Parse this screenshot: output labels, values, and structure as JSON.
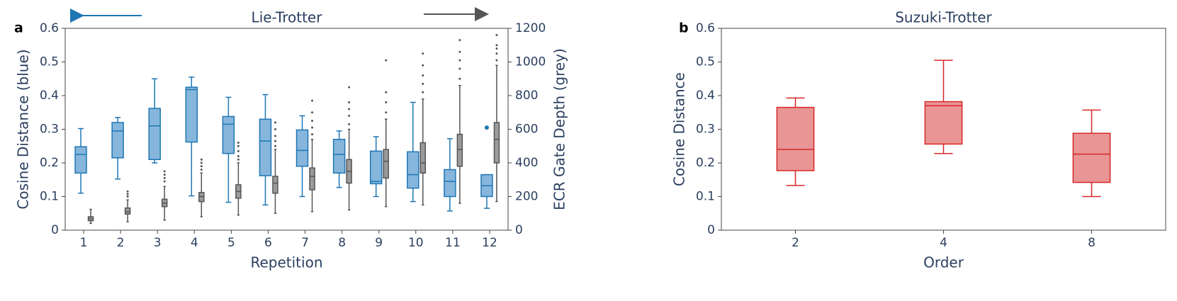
{
  "chart_data": [
    {
      "type": "box",
      "panel_label": "a",
      "title": "Lie-Trotter",
      "x_label": "Repetition",
      "y_label": "Cosine Distance (blue)",
      "y2_label": "ECR Gate Depth (grey)",
      "categories": [
        "1",
        "2",
        "3",
        "4",
        "5",
        "6",
        "7",
        "8",
        "9",
        "10",
        "11",
        "12"
      ],
      "ylim": [
        0,
        0.6
      ],
      "yticks": [
        0,
        0.1,
        0.2,
        0.3,
        0.4,
        0.5,
        0.6
      ],
      "y2lim": [
        0,
        1200
      ],
      "y2ticks": [
        0,
        200,
        400,
        600,
        800,
        1000,
        1200
      ],
      "series": [
        {
          "color": "#1f77b4",
          "fill": "#86b6dc",
          "axis": "y",
          "boxes": [
            {
              "whislo": 0.11,
              "q1": 0.17,
              "med": 0.225,
              "q3": 0.248,
              "whishi": 0.302,
              "fliers": []
            },
            {
              "whislo": 0.152,
              "q1": 0.215,
              "med": 0.295,
              "q3": 0.32,
              "whishi": 0.335,
              "fliers": []
            },
            {
              "whislo": 0.2,
              "q1": 0.21,
              "med": 0.31,
              "q3": 0.362,
              "whishi": 0.45,
              "fliers": []
            },
            {
              "whislo": 0.102,
              "q1": 0.262,
              "med": 0.418,
              "q3": 0.425,
              "whishi": 0.455,
              "fliers": []
            },
            {
              "whislo": 0.083,
              "q1": 0.228,
              "med": 0.315,
              "q3": 0.338,
              "whishi": 0.395,
              "fliers": []
            },
            {
              "whislo": 0.075,
              "q1": 0.162,
              "med": 0.265,
              "q3": 0.33,
              "whishi": 0.403,
              "fliers": []
            },
            {
              "whislo": 0.1,
              "q1": 0.19,
              "med": 0.237,
              "q3": 0.298,
              "whishi": 0.34,
              "fliers": []
            },
            {
              "whislo": 0.127,
              "q1": 0.17,
              "med": 0.225,
              "q3": 0.27,
              "whishi": 0.295,
              "fliers": []
            },
            {
              "whislo": 0.1,
              "q1": 0.138,
              "med": 0.145,
              "q3": 0.235,
              "whishi": 0.278,
              "fliers": []
            },
            {
              "whislo": 0.085,
              "q1": 0.125,
              "med": 0.165,
              "q3": 0.233,
              "whishi": 0.38,
              "fliers": []
            },
            {
              "whislo": 0.057,
              "q1": 0.1,
              "med": 0.145,
              "q3": 0.18,
              "whishi": 0.272,
              "fliers": []
            },
            {
              "whislo": 0.065,
              "q1": 0.1,
              "med": 0.132,
              "q3": 0.165,
              "whishi": 0.165,
              "fliers": [
                0.305
              ]
            }
          ]
        },
        {
          "color": "#555555",
          "fill": "#9a9a9a",
          "axis": "y2",
          "boxes": [
            {
              "whislo": 40,
              "q1": 56,
              "med": 68,
              "q3": 80,
              "whishi": 124,
              "fliers": []
            },
            {
              "whislo": 50,
              "q1": 96,
              "med": 110,
              "q3": 132,
              "whishi": 180,
              "fliers": [
                200,
                215,
                230
              ]
            },
            {
              "whislo": 60,
              "q1": 140,
              "med": 160,
              "q3": 184,
              "whishi": 260,
              "fliers": [
                290,
                310,
                330,
                350
              ]
            },
            {
              "whislo": 80,
              "q1": 170,
              "med": 200,
              "q3": 224,
              "whishi": 340,
              "fliers": [
                360,
                380,
                400,
                420
              ]
            },
            {
              "whislo": 90,
              "q1": 190,
              "med": 230,
              "q3": 270,
              "whishi": 400,
              "fliers": [
                420,
                440,
                470,
                500,
                520
              ]
            },
            {
              "whislo": 100,
              "q1": 220,
              "med": 280,
              "q3": 320,
              "whishi": 480,
              "fliers": [
                500,
                530,
                560,
                600,
                640
              ]
            },
            {
              "whislo": 110,
              "q1": 240,
              "med": 320,
              "q3": 370,
              "whishi": 540,
              "fliers": [
                570,
                610,
                650,
                700,
                770
              ]
            },
            {
              "whislo": 120,
              "q1": 280,
              "med": 350,
              "q3": 420,
              "whishi": 600,
              "fliers": [
                630,
                680,
                720,
                760,
                850
              ]
            },
            {
              "whislo": 140,
              "q1": 310,
              "med": 410,
              "q3": 480,
              "whishi": 660,
              "fliers": [
                700,
                760,
                820,
                1010
              ]
            },
            {
              "whislo": 150,
              "q1": 340,
              "med": 400,
              "q3": 520,
              "whishi": 780,
              "fliers": [
                820,
                870,
                920,
                980,
                1050
              ]
            },
            {
              "whislo": 160,
              "q1": 380,
              "med": 480,
              "q3": 570,
              "whishi": 860,
              "fliers": [
                900,
                960,
                1010,
                1060,
                1130
              ]
            },
            {
              "whislo": 170,
              "q1": 400,
              "med": 540,
              "q3": 640,
              "whishi": 980,
              "fliers": [
                1010,
                1050,
                1080,
                1100,
                1160
              ]
            }
          ]
        }
      ]
    },
    {
      "type": "box",
      "panel_label": "b",
      "title": "Suzuki-Trotter",
      "x_label": "Order",
      "y_label": "Cosine Distance",
      "categories": [
        "2",
        "4",
        "8"
      ],
      "ylim": [
        0,
        0.6
      ],
      "yticks": [
        0,
        0.1,
        0.2,
        0.3,
        0.4,
        0.5,
        0.6
      ],
      "series": [
        {
          "color": "#d62728",
          "fill": "#e99595",
          "axis": "y",
          "boxes": [
            {
              "whislo": 0.133,
              "q1": 0.177,
              "med": 0.24,
              "q3": 0.365,
              "whishi": 0.393,
              "fliers": []
            },
            {
              "whislo": 0.228,
              "q1": 0.256,
              "med": 0.37,
              "q3": 0.382,
              "whishi": 0.505,
              "fliers": []
            },
            {
              "whislo": 0.1,
              "q1": 0.142,
              "med": 0.226,
              "q3": 0.288,
              "whishi": 0.357,
              "fliers": []
            }
          ]
        }
      ]
    }
  ]
}
